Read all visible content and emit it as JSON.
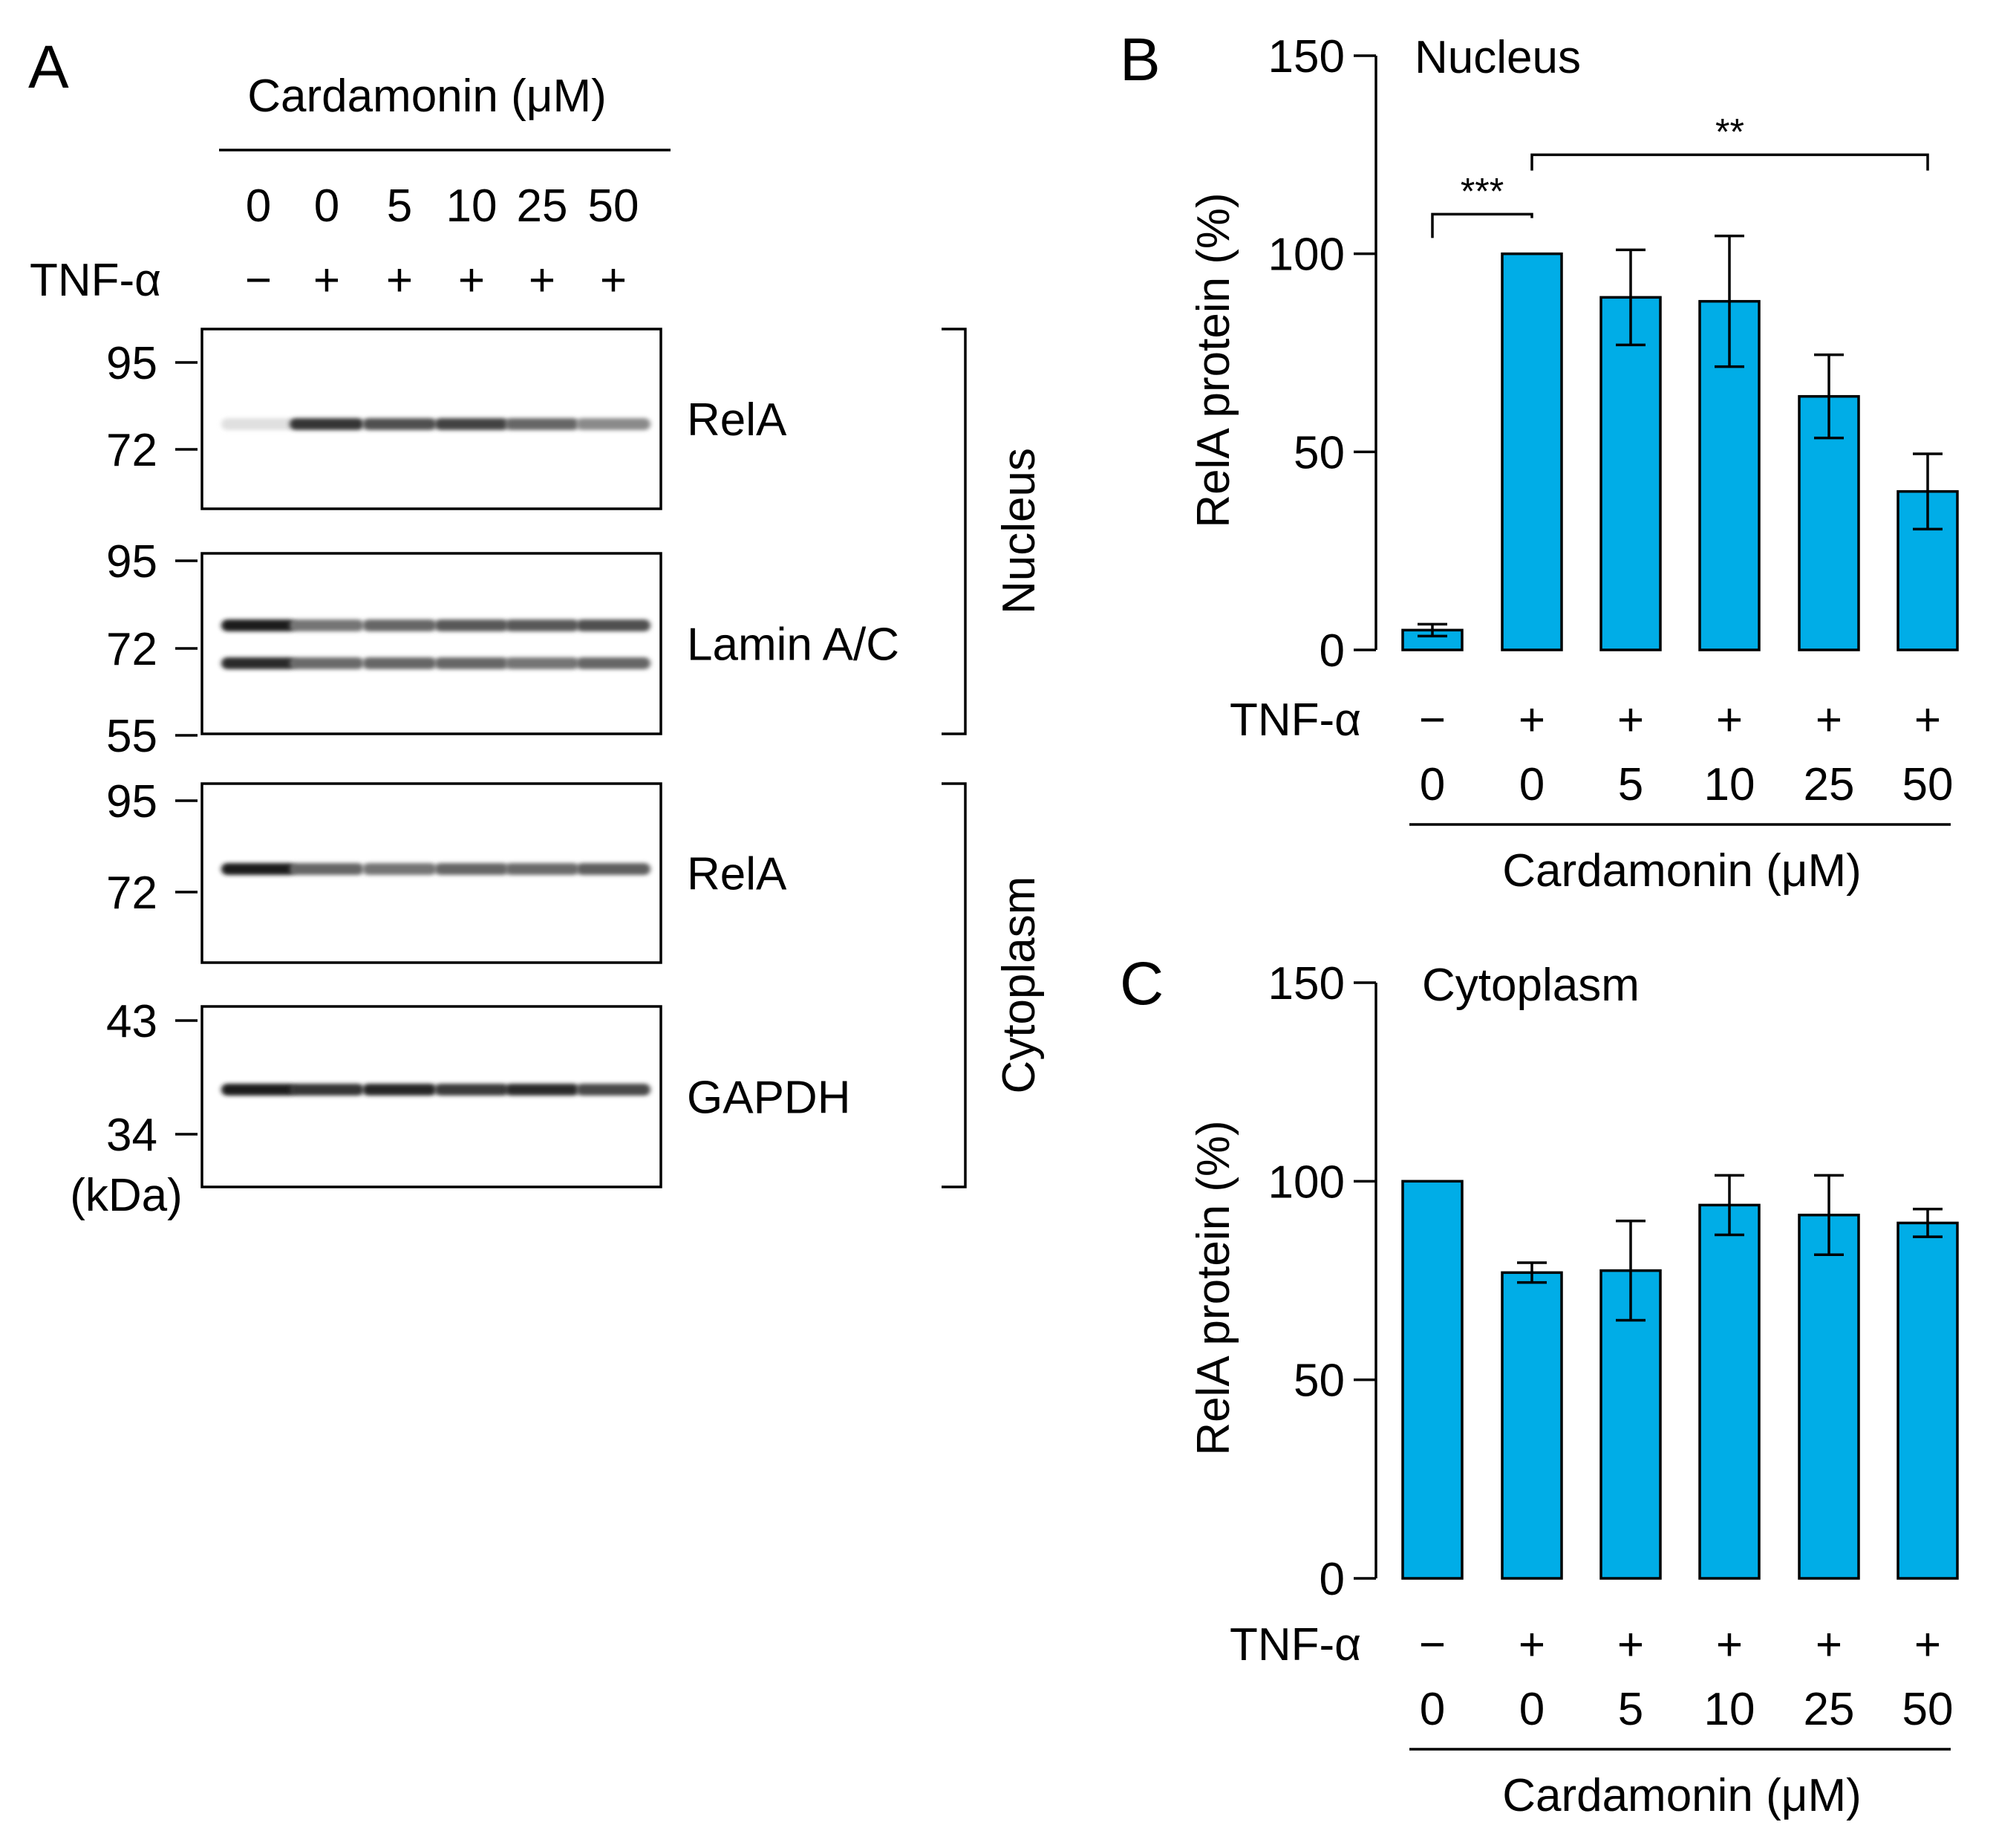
{
  "panel_a": {
    "letter": "A",
    "header": "Cardamonin (μM)",
    "doses": [
      "0",
      "0",
      "5",
      "10",
      "25",
      "50"
    ],
    "tnf_label": "TNF-α",
    "tnf": [
      "−",
      "+",
      "+",
      "+",
      "+",
      "+"
    ],
    "unit": "(kDa)",
    "blots": [
      {
        "label": "RelA",
        "markers": [
          "95",
          "72"
        ],
        "bands": [
          [
            0.05,
            0.85,
            0.72,
            0.78,
            0.62,
            0.45
          ]
        ]
      },
      {
        "label": "Lamin A/C",
        "markers": [
          "95",
          "72",
          "55"
        ],
        "bands": [
          [
            0.95,
            0.55,
            0.62,
            0.68,
            0.68,
            0.72
          ],
          [
            0.9,
            0.6,
            0.62,
            0.62,
            0.55,
            0.62
          ]
        ]
      },
      {
        "label": "RelA",
        "markers": [
          "95",
          "72"
        ],
        "bands": [
          [
            0.95,
            0.62,
            0.55,
            0.62,
            0.6,
            0.65
          ]
        ]
      },
      {
        "label": "GAPDH",
        "markers": [
          "43",
          "34"
        ],
        "bands": [
          [
            0.95,
            0.85,
            0.92,
            0.82,
            0.9,
            0.75
          ]
        ]
      }
    ],
    "bracket_nucleus": "Nucleus",
    "bracket_cytoplasm": "Cytoplasm"
  },
  "chart_data": [
    {
      "type": "bar",
      "panel": "B",
      "title": "Nucleus",
      "ylabel": "RelA protein (%)",
      "ylim": [
        0,
        150
      ],
      "yticks": [
        "0",
        "50",
        "100",
        "150"
      ],
      "categories": [
        "0",
        "0",
        "5",
        "10",
        "25",
        "50"
      ],
      "tnf": [
        "−",
        "+",
        "+",
        "+",
        "+",
        "+"
      ],
      "tnf_label": "TNF-α",
      "xlabel": "Cardamonin (μM)",
      "values": [
        5,
        100,
        89,
        88,
        64,
        40
      ],
      "errors": [
        1.5,
        0,
        12,
        16.5,
        10.5,
        9.5
      ],
      "color": "#00ade7",
      "significance": [
        {
          "from": 0,
          "to": 1,
          "label": "***"
        },
        {
          "from": 1,
          "to": 5,
          "label": "**"
        }
      ]
    },
    {
      "type": "bar",
      "panel": "C",
      "title": "Cytoplasm",
      "ylabel": "RelA protein (%)",
      "ylim": [
        0,
        150
      ],
      "yticks": [
        "0",
        "50",
        "100",
        "150"
      ],
      "categories": [
        "0",
        "0",
        "5",
        "10",
        "25",
        "50"
      ],
      "tnf": [
        "−",
        "+",
        "+",
        "+",
        "+",
        "+"
      ],
      "tnf_label": "TNF-α",
      "xlabel": "Cardamonin (μM)",
      "values": [
        100,
        77,
        77.5,
        94,
        91.5,
        89.5
      ],
      "errors": [
        0,
        2.5,
        12.5,
        7.5,
        10,
        3.5
      ],
      "color": "#00ade7",
      "significance": []
    }
  ]
}
